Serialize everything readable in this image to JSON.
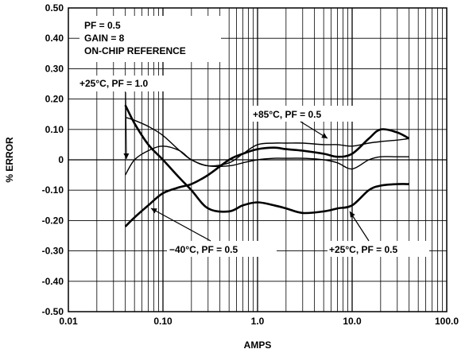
{
  "chart_data": {
    "type": "line",
    "xlabel": "AMPS",
    "ylabel": "% ERROR",
    "x_scale": "log",
    "xlim": [
      0.01,
      100
    ],
    "ylim": [
      -0.5,
      0.5
    ],
    "grid": true,
    "x_ticks": [
      "0.01",
      "0.10",
      "1.0",
      "10.0",
      "100.0"
    ],
    "y_ticks": [
      "0.50",
      "0.40",
      "0.30",
      "0.20",
      "0.10",
      "0",
      "-0.10",
      "-0.20",
      "-0.30",
      "-0.40",
      "-0.50"
    ],
    "conditions": [
      "PF = 0.5",
      "GAIN = 8",
      "ON-CHIP REFERENCE"
    ],
    "series": [
      {
        "name": "+25°C, PF = 1.0",
        "x": [
          0.04,
          0.05,
          0.07,
          0.1,
          0.15,
          0.2,
          0.3,
          0.5,
          0.7,
          1.0,
          1.5,
          2,
          3,
          5,
          7,
          10,
          15,
          20,
          30,
          40
        ],
        "y": [
          0.14,
          0.13,
          0.11,
          0.08,
          0.03,
          0.0,
          -0.02,
          -0.02,
          -0.01,
          0.0,
          0.005,
          0.005,
          0.005,
          0.0,
          -0.01,
          -0.03,
          0.0,
          0.01,
          0.01,
          0.01
        ]
      },
      {
        "name": "+85°C, PF = 0.5",
        "x": [
          0.04,
          0.05,
          0.07,
          0.1,
          0.15,
          0.2,
          0.3,
          0.5,
          0.7,
          1.0,
          1.5,
          2,
          3,
          5,
          7,
          10,
          15,
          20,
          30,
          40
        ],
        "y": [
          -0.05,
          0.0,
          0.03,
          0.045,
          0.03,
          0.0,
          -0.02,
          -0.01,
          0.02,
          0.05,
          0.055,
          0.055,
          0.055,
          0.05,
          0.05,
          0.045,
          0.055,
          0.06,
          0.065,
          0.07
        ]
      },
      {
        "name": "−40°C, PF = 0.5",
        "x": [
          0.04,
          0.05,
          0.07,
          0.1,
          0.15,
          0.2,
          0.3,
          0.5,
          0.7,
          1.0,
          1.5,
          2,
          3,
          5,
          7,
          10,
          15,
          20,
          30,
          40
        ],
        "y": [
          0.18,
          0.12,
          0.05,
          0.0,
          -0.06,
          -0.1,
          -0.16,
          -0.17,
          -0.15,
          -0.14,
          -0.15,
          -0.16,
          -0.175,
          -0.17,
          -0.16,
          -0.15,
          -0.1,
          -0.085,
          -0.08,
          -0.08
        ]
      },
      {
        "name": "+25°C, PF = 0.5",
        "x": [
          0.04,
          0.05,
          0.07,
          0.1,
          0.15,
          0.2,
          0.3,
          0.5,
          0.7,
          1.0,
          1.5,
          2,
          3,
          5,
          7,
          10,
          15,
          20,
          30,
          40
        ],
        "y": [
          -0.22,
          -0.19,
          -0.15,
          -0.11,
          -0.09,
          -0.08,
          -0.05,
          0.0,
          0.02,
          0.035,
          0.04,
          0.035,
          0.03,
          0.02,
          0.01,
          0.02,
          0.07,
          0.1,
          0.09,
          0.07
        ]
      }
    ],
    "annotations": [
      {
        "text": "+25°C, PF = 1.0"
      },
      {
        "text": "+85°C, PF = 0.5"
      },
      {
        "text": "−40°C, PF = 0.5"
      },
      {
        "text": "+25°C, PF = 0.5"
      }
    ]
  }
}
